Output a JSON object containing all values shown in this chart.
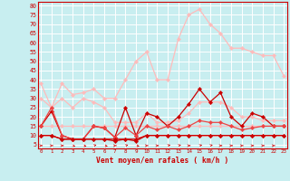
{
  "background_color": "#c8eef0",
  "grid_color": "#ffffff",
  "xlabel": "Vent moyen/en rafales ( km/h )",
  "x": [
    0,
    1,
    2,
    3,
    4,
    5,
    6,
    7,
    8,
    9,
    10,
    11,
    12,
    13,
    14,
    15,
    16,
    17,
    18,
    19,
    20,
    21,
    22,
    23
  ],
  "ylim": [
    3,
    82
  ],
  "xlim": [
    -0.3,
    23.3
  ],
  "yticks": [
    5,
    10,
    15,
    20,
    25,
    30,
    35,
    40,
    45,
    50,
    55,
    60,
    65,
    70,
    75,
    80
  ],
  "xticks": [
    0,
    1,
    2,
    3,
    4,
    5,
    6,
    7,
    8,
    9,
    10,
    11,
    12,
    13,
    14,
    15,
    16,
    17,
    18,
    19,
    20,
    21,
    22,
    23
  ],
  "line_pink_upper": [
    38,
    25,
    38,
    32,
    33,
    35,
    30,
    30,
    40,
    50,
    55,
    40,
    40,
    62,
    75,
    78,
    70,
    65,
    57,
    57,
    55,
    53,
    53,
    42
  ],
  "line_pink_lower": [
    30,
    25,
    30,
    25,
    30,
    28,
    25,
    17,
    17,
    17,
    22,
    17,
    17,
    18,
    22,
    28,
    28,
    28,
    25,
    20,
    20,
    18,
    18,
    18
  ],
  "line_pink_flat": [
    15,
    15,
    15,
    15,
    15,
    15,
    15,
    15,
    15,
    15,
    15,
    15,
    15,
    15,
    15,
    15,
    15,
    15,
    15,
    15,
    15,
    15,
    15,
    15
  ],
  "line_red_jagged1": [
    15,
    23,
    10,
    8,
    8,
    15,
    14,
    9,
    25,
    10,
    22,
    20,
    15,
    20,
    27,
    35,
    28,
    33,
    20,
    15,
    22,
    20,
    15,
    15
  ],
  "line_red_jagged2": [
    15,
    25,
    10,
    8,
    8,
    15,
    14,
    9,
    14,
    10,
    15,
    13,
    15,
    13,
    15,
    18,
    17,
    17,
    15,
    13,
    14,
    15,
    15,
    15
  ],
  "line_red_flat1": [
    10,
    10,
    8,
    8,
    8,
    8,
    8,
    8,
    8,
    8,
    10,
    10,
    10,
    10,
    10,
    10,
    10,
    10,
    10,
    10,
    10,
    10,
    10,
    10
  ],
  "line_red_flat2": [
    10,
    10,
    8,
    8,
    8,
    8,
    8,
    7,
    8,
    7,
    10,
    10,
    10,
    10,
    10,
    10,
    10,
    10,
    10,
    10,
    10,
    10,
    10,
    10
  ],
  "col_pink_upper": "#ffbbbb",
  "col_pink_lower": "#ffbbbb",
  "col_pink_flat": "#ffbbbb",
  "col_red_jagged1": "#cc0000",
  "col_red_jagged2": "#ee4444",
  "col_red_flat1": "#cc0000",
  "col_red_flat2": "#cc0000",
  "arrow_angles": [
    0,
    0,
    0,
    -45,
    -30,
    45,
    -30,
    0,
    45,
    -30,
    0,
    0,
    45,
    45,
    0,
    45,
    45,
    0,
    0,
    0,
    0,
    0,
    0,
    0
  ]
}
